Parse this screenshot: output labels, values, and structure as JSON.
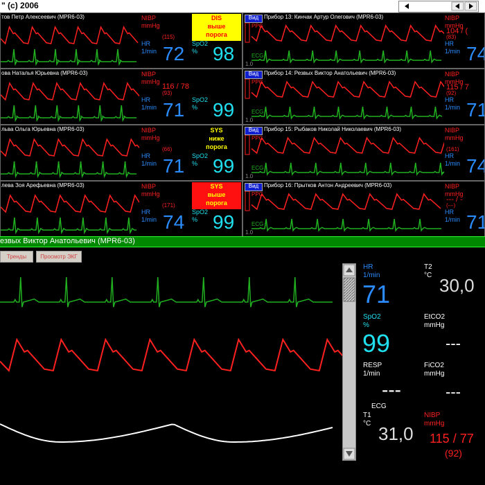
{
  "header": {
    "title": "\" (c) 2006"
  },
  "left_tiles": [
    {
      "name": "тов Петр Алексеевич (MPR6-03)",
      "nibp_label": "NIBP",
      "nibp_unit": "mmHg",
      "nibp_mean": "(115)",
      "hr_label": "HR",
      "hr_unit": "1/min",
      "hr": "72",
      "alarm": [
        "DIS",
        "выше",
        "порога"
      ],
      "alarm_bg": "#ffff00",
      "alarm_color": "#ff0000",
      "spo2_label": "SpO2",
      "spo2_unit": "%",
      "spo2": "98"
    },
    {
      "name": "ова Наталья Юрьевна (MPR6-03)",
      "nibp_label": "NIBP",
      "nibp_unit": "mmHg",
      "nibp_value": "116 / 78",
      "nibp_mean": "(93)",
      "hr_label": "HR",
      "hr_unit": "1/min",
      "hr": "71",
      "spo2_label": "SpO2",
      "spo2_unit": "%",
      "spo2": "99"
    },
    {
      "name": "льва Ольга Юрьевна (MPR6-03)",
      "nibp_label": "NIBP",
      "nibp_unit": "mmHg",
      "nibp_mean": "(66)",
      "hr_label": "HR",
      "hr_unit": "1/min",
      "hr": "71",
      "alarm": [
        "SYS",
        "ниже",
        "порога"
      ],
      "alarm_bg": "#000000",
      "alarm_color": "#ffff00",
      "spo2_label": "SpO2",
      "spo2_unit": "%",
      "spo2": "99"
    },
    {
      "name": "лева Зоя Арефьевна (MPR6-03)",
      "nibp_label": "NIBP",
      "nibp_unit": "mmHg",
      "nibp_mean": "(171)",
      "hr_label": "HR",
      "hr_unit": "1/min",
      "hr": "74",
      "alarm": [
        "SYS",
        "выше",
        "порога"
      ],
      "alarm_bg": "#ff1010",
      "alarm_color": "#ffff00",
      "spo2_label": "SpO2",
      "spo2_unit": "%",
      "spo2": "99"
    }
  ],
  "right_tiles": [
    {
      "button": "Вид",
      "name": "Прибор 13: Кинчак Артур Олегович (MPR6-03)",
      "ppg": "PPG",
      "ecg": "ECG",
      "scale": "1.0",
      "nibp_label": "NIBP",
      "nibp_unit": "mmHg",
      "nibp_value": "104 / (",
      "nibp_mean": "(83)",
      "hr_label": "HR",
      "hr_unit": "1/min",
      "hr": "74"
    },
    {
      "button": "Вид",
      "name": "Прибор 14: Резвых Виктор Анатольевич (MPR6-03)",
      "ppg": "PPG",
      "ecg": "ECG",
      "scale": "1.0",
      "nibp_label": "NIBP",
      "nibp_unit": "mmHg",
      "nibp_value": "115 / 7",
      "nibp_mean": "(92)",
      "hr_label": "HR",
      "hr_unit": "1/min",
      "hr": "71"
    },
    {
      "button": "Вид",
      "name": "Прибор 15: Рыбаков Николай Николаевич (MPR6-03)",
      "ppg": "PPG",
      "ecg": "ECG",
      "scale": "1.0",
      "nibp_label": "NIBP",
      "nibp_unit": "mmHg",
      "nibp_mean": "(161)",
      "hr_label": "HR",
      "hr_unit": "1/min",
      "hr": "74"
    },
    {
      "button": "Вид",
      "name": "Прибор 16: Прытков Антон Андреевич (MPR6-03)",
      "ppg": "PPG",
      "ecg": "ECG",
      "scale": "1.0",
      "nibp_label": "NIBP",
      "nibp_unit": "mmHg",
      "nibp_value": "--- / -",
      "nibp_mean": "(---)",
      "hr_label": "HR",
      "hr_unit": "1/min",
      "hr": "71"
    }
  ],
  "detail": {
    "patient": "езвых Виктор Анатольевич (MPR6-03)",
    "buttons": [
      "Тренды",
      "Просмотр ЭКГ"
    ],
    "hr": {
      "label": "HR",
      "unit": "1/min",
      "value": "71"
    },
    "spo2": {
      "label": "SpO2",
      "unit": "%",
      "value": "99"
    },
    "resp": {
      "label": "RESP",
      "unit": "1/min",
      "value": "---"
    },
    "ecg": "ECG",
    "t1": {
      "label": "T1",
      "unit": "°C",
      "value": "31,0"
    },
    "t2": {
      "label": "T2",
      "unit": "°C",
      "value": "30,0"
    },
    "etco2": {
      "label": "EtCO2",
      "unit": "mmHg",
      "value": "---"
    },
    "fico2": {
      "label": "FiCO2",
      "unit": "mmHg",
      "value": "---"
    },
    "nibp": {
      "label": "NIBP",
      "unit": "mmHg",
      "value": "115 / 77",
      "mean": "(92)"
    }
  }
}
